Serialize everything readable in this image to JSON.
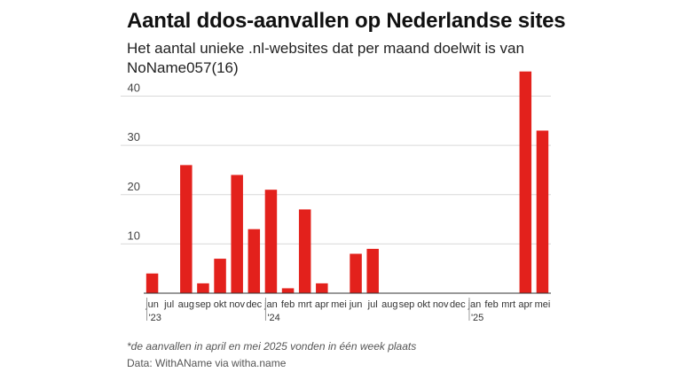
{
  "header": {
    "title": "Aantal ddos-aanvallen op Nederlandse sites",
    "subtitle": "Het aantal unieke .nl-websites dat per maand doelwit is van NoName057(16)"
  },
  "footer": {
    "note": "*de aanvallen in april en mei 2025 vonden in één week plaats",
    "source": "Data: WithAName via witha.name"
  },
  "colors": {
    "bar": "#e3211c",
    "grid": "#d9d9d9",
    "axis": "#333333"
  },
  "chart_data": {
    "type": "bar",
    "title": "Aantal ddos-aanvallen op Nederlandse sites",
    "subtitle": "Het aantal unieke .nl-websites dat per maand doelwit is van NoName057(16)",
    "categories": [
      "jun",
      "jul",
      "aug",
      "sep",
      "okt",
      "nov",
      "dec",
      "jan",
      "feb",
      "mrt",
      "apr",
      "mei",
      "jun",
      "jul",
      "aug",
      "sep",
      "okt",
      "nov",
      "dec",
      "jan",
      "feb",
      "mrt",
      "apr",
      "mei"
    ],
    "year_labels": [
      {
        "index": 0,
        "label": "'23"
      },
      {
        "index": 7,
        "label": "'24"
      },
      {
        "index": 19,
        "label": "'25"
      }
    ],
    "values": [
      4,
      0,
      26,
      2,
      7,
      24,
      13,
      21,
      1,
      17,
      2,
      0,
      8,
      9,
      0,
      0,
      0,
      0,
      0,
      0,
      0,
      0,
      45,
      33
    ],
    "ylim": [
      0,
      48
    ],
    "yticks": [
      10,
      20,
      30,
      40
    ],
    "grid": true,
    "xlabel": "",
    "ylabel": ""
  }
}
